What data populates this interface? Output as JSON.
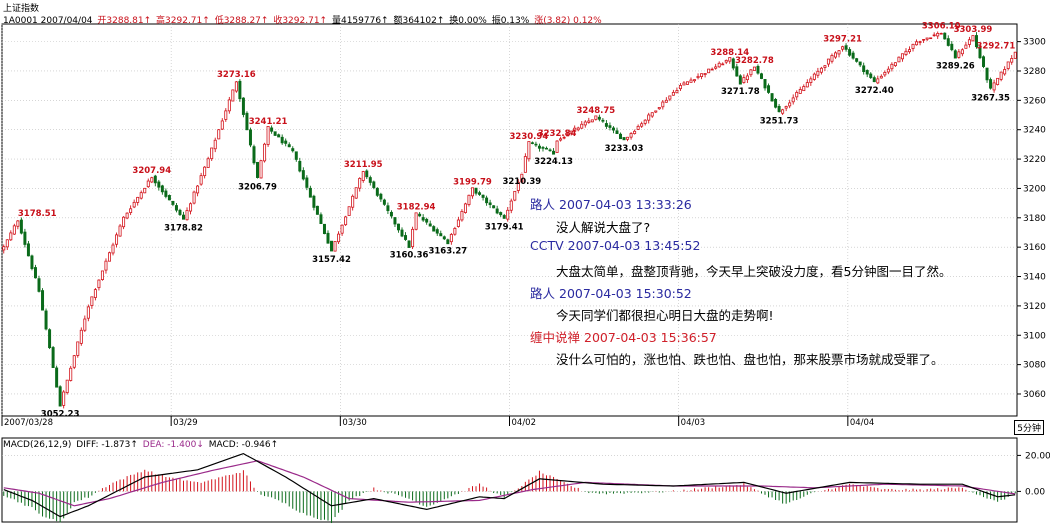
{
  "header": {
    "title": "上证指数",
    "code_date": "1A0001 2007/04/04",
    "open": "开3288.81↑",
    "high": "高3292.71↑",
    "low": "低3288.27↑",
    "close": "收3292.71↑",
    "volume": "量4159776↑",
    "amount": "额364102↑",
    "turnover": "换0.00%",
    "amplitude": "振0.13%",
    "change": "涨(3.82) 0.12%"
  },
  "timeframe": "5分钟",
  "macd_header": {
    "title": "MACD(26,12,9)",
    "diff": "DIFF: -1.873↑",
    "dea": "DEA: -1.400↓",
    "macd": "MACD: -0.946↑"
  },
  "comments": [
    {
      "name": "路人",
      "time": "2007-04-03 13:33:26",
      "text": "没人解说大盘了?",
      "special": false
    },
    {
      "name": "CCTV",
      "time": "2007-04-03 13:45:52",
      "text": "大盘太简单，盘整顶背驰，今天早上突破没力度，看5分钟图一目了然。",
      "special": false
    },
    {
      "name": "路人",
      "time": "2007-04-03 15:30:52",
      "text": "今天同学们都很担心明日大盘的走势啊!",
      "special": false
    },
    {
      "name": "缠中说禅",
      "time": "2007-04-03 15:36:57",
      "text": "没什么可怕的，涨也怕、跌也怕、盘也怕，那来股票市场就成受罪了。",
      "special": true
    }
  ],
  "colors": {
    "up": "#d3141c",
    "down": "#0a6a1a",
    "high_label": "#c8101a",
    "low_label": "#000000",
    "diff_line": "#000000",
    "dea_line": "#9a2a8a",
    "name": "#2a2aa0",
    "special_name": "#d0202a"
  },
  "chart_data": {
    "type": "candlestick",
    "title": "上证指数",
    "timeframe": "5分钟",
    "price_axis": {
      "ticks": [
        3060,
        3080,
        3100,
        3120,
        3140,
        3160,
        3180,
        3200,
        3220,
        3240,
        3260,
        3280,
        3300
      ],
      "ylim": [
        3045,
        3312
      ]
    },
    "date_axis": [
      {
        "label": "2007/03/28",
        "bar": 0
      },
      {
        "label": "03/29",
        "bar": 48
      },
      {
        "label": "03/30",
        "bar": 96
      },
      {
        "label": "04/02",
        "bar": 144
      },
      {
        "label": "04/03",
        "bar": 192
      },
      {
        "label": "04/04",
        "bar": 240
      }
    ],
    "bar_count": 288,
    "anchors": [
      {
        "bar": 0,
        "price": 3160
      },
      {
        "bar": 4,
        "price": 3178.51
      },
      {
        "bar": 10,
        "price": 3130
      },
      {
        "bar": 16,
        "price": 3052.23
      },
      {
        "bar": 24,
        "price": 3120
      },
      {
        "bar": 34,
        "price": 3180
      },
      {
        "bar": 42,
        "price": 3207.94
      },
      {
        "bar": 51,
        "price": 3178.82
      },
      {
        "bar": 58,
        "price": 3220
      },
      {
        "bar": 66,
        "price": 3273.16
      },
      {
        "bar": 72,
        "price": 3206.79
      },
      {
        "bar": 75,
        "price": 3241.21
      },
      {
        "bar": 82,
        "price": 3225
      },
      {
        "bar": 93,
        "price": 3157.42
      },
      {
        "bar": 102,
        "price": 3211.95
      },
      {
        "bar": 115,
        "price": 3160.36
      },
      {
        "bar": 117,
        "price": 3182.94
      },
      {
        "bar": 126,
        "price": 3163.27
      },
      {
        "bar": 133,
        "price": 3199.79
      },
      {
        "bar": 142,
        "price": 3179.41
      },
      {
        "bar": 147,
        "price": 3210.39
      },
      {
        "bar": 149,
        "price": 3230.94
      },
      {
        "bar": 156,
        "price": 3224.13
      },
      {
        "bar": 157,
        "price": 3232.84
      },
      {
        "bar": 168,
        "price": 3248.75
      },
      {
        "bar": 176,
        "price": 3233.03
      },
      {
        "bar": 192,
        "price": 3270
      },
      {
        "bar": 206,
        "price": 3288.14
      },
      {
        "bar": 209,
        "price": 3271.78
      },
      {
        "bar": 213,
        "price": 3282.78
      },
      {
        "bar": 220,
        "price": 3251.73
      },
      {
        "bar": 238,
        "price": 3297.21
      },
      {
        "bar": 247,
        "price": 3272.4
      },
      {
        "bar": 259,
        "price": 3300
      },
      {
        "bar": 266,
        "price": 3306.1
      },
      {
        "bar": 270,
        "price": 3289.26
      },
      {
        "bar": 275,
        "price": 3303.99
      },
      {
        "bar": 280,
        "price": 3267.35
      },
      {
        "bar": 287,
        "price": 3292.71
      }
    ],
    "annotations": [
      {
        "bar": 4,
        "price": 3178.51,
        "label": "3178.51",
        "kind": "high"
      },
      {
        "bar": 16,
        "price": 3052.23,
        "label": "3052.23",
        "kind": "low"
      },
      {
        "bar": 42,
        "price": 3207.94,
        "label": "3207.94",
        "kind": "high"
      },
      {
        "bar": 51,
        "price": 3178.82,
        "label": "3178.82",
        "kind": "low"
      },
      {
        "bar": 66,
        "price": 3273.16,
        "label": "3273.16",
        "kind": "high"
      },
      {
        "bar": 72,
        "price": 3206.79,
        "label": "3206.79",
        "kind": "low"
      },
      {
        "bar": 75,
        "price": 3241.21,
        "label": "3241.21",
        "kind": "high"
      },
      {
        "bar": 93,
        "price": 3157.42,
        "label": "3157.42",
        "kind": "low"
      },
      {
        "bar": 102,
        "price": 3211.95,
        "label": "3211.95",
        "kind": "high"
      },
      {
        "bar": 115,
        "price": 3160.36,
        "label": "3160.36",
        "kind": "low"
      },
      {
        "bar": 117,
        "price": 3182.94,
        "label": "3182.94",
        "kind": "high"
      },
      {
        "bar": 126,
        "price": 3163.27,
        "label": "3163.27",
        "kind": "low"
      },
      {
        "bar": 133,
        "price": 3199.79,
        "label": "3199.79",
        "kind": "high"
      },
      {
        "bar": 142,
        "price": 3179.41,
        "label": "3179.41",
        "kind": "low"
      },
      {
        "bar": 147,
        "price": 3210.39,
        "label": "3210.39",
        "kind": "low"
      },
      {
        "bar": 149,
        "price": 3230.94,
        "label": "3230.94",
        "kind": "high"
      },
      {
        "bar": 156,
        "price": 3224.13,
        "label": "3224.13",
        "kind": "low"
      },
      {
        "bar": 157,
        "price": 3232.84,
        "label": "3232.84",
        "kind": "high"
      },
      {
        "bar": 168,
        "price": 3248.75,
        "label": "3248.75",
        "kind": "high"
      },
      {
        "bar": 176,
        "price": 3233.03,
        "label": "3233.03",
        "kind": "low"
      },
      {
        "bar": 206,
        "price": 3288.14,
        "label": "3288.14",
        "kind": "high"
      },
      {
        "bar": 209,
        "price": 3271.78,
        "label": "3271.78",
        "kind": "low"
      },
      {
        "bar": 213,
        "price": 3282.78,
        "label": "3282.78",
        "kind": "high"
      },
      {
        "bar": 220,
        "price": 3251.73,
        "label": "3251.73",
        "kind": "low"
      },
      {
        "bar": 238,
        "price": 3297.21,
        "label": "3297.21",
        "kind": "high"
      },
      {
        "bar": 247,
        "price": 3272.4,
        "label": "3272.40",
        "kind": "low"
      },
      {
        "bar": 266,
        "price": 3306.1,
        "label": "3306.10",
        "kind": "high"
      },
      {
        "bar": 270,
        "price": 3289.26,
        "label": "3289.26",
        "kind": "low"
      },
      {
        "bar": 275,
        "price": 3303.99,
        "label": "3303.99",
        "kind": "high"
      },
      {
        "bar": 280,
        "price": 3267.35,
        "label": "3267.35",
        "kind": "low"
      },
      {
        "bar": 287,
        "price": 3292.71,
        "label": "3292.71",
        "kind": "high"
      }
    ],
    "macd": {
      "axis_ticks": [
        0.0,
        20.0
      ],
      "ylim": [
        -17,
        23
      ],
      "diff_anchors": [
        {
          "bar": 0,
          "v": 1
        },
        {
          "bar": 8,
          "v": -5
        },
        {
          "bar": 16,
          "v": -14
        },
        {
          "bar": 24,
          "v": -8
        },
        {
          "bar": 40,
          "v": 8
        },
        {
          "bar": 55,
          "v": 12
        },
        {
          "bar": 68,
          "v": 21
        },
        {
          "bar": 80,
          "v": 8
        },
        {
          "bar": 93,
          "v": -8
        },
        {
          "bar": 105,
          "v": -4
        },
        {
          "bar": 120,
          "v": -10
        },
        {
          "bar": 135,
          "v": -3
        },
        {
          "bar": 142,
          "v": -4
        },
        {
          "bar": 152,
          "v": 7
        },
        {
          "bar": 170,
          "v": 4
        },
        {
          "bar": 190,
          "v": 3
        },
        {
          "bar": 210,
          "v": 5
        },
        {
          "bar": 222,
          "v": -1
        },
        {
          "bar": 240,
          "v": 5
        },
        {
          "bar": 260,
          "v": 4
        },
        {
          "bar": 272,
          "v": 4
        },
        {
          "bar": 282,
          "v": -3
        },
        {
          "bar": 287,
          "v": -1.873
        }
      ],
      "dea_anchors": [
        {
          "bar": 0,
          "v": 2
        },
        {
          "bar": 10,
          "v": -1
        },
        {
          "bar": 20,
          "v": -8
        },
        {
          "bar": 30,
          "v": -4
        },
        {
          "bar": 45,
          "v": 5
        },
        {
          "bar": 60,
          "v": 12
        },
        {
          "bar": 72,
          "v": 17
        },
        {
          "bar": 85,
          "v": 8
        },
        {
          "bar": 98,
          "v": -4
        },
        {
          "bar": 115,
          "v": -6
        },
        {
          "bar": 135,
          "v": -5
        },
        {
          "bar": 150,
          "v": 1
        },
        {
          "bar": 165,
          "v": 5
        },
        {
          "bar": 190,
          "v": 3
        },
        {
          "bar": 215,
          "v": 3
        },
        {
          "bar": 230,
          "v": 2
        },
        {
          "bar": 250,
          "v": 4
        },
        {
          "bar": 272,
          "v": 3
        },
        {
          "bar": 287,
          "v": -1.4
        }
      ]
    }
  }
}
